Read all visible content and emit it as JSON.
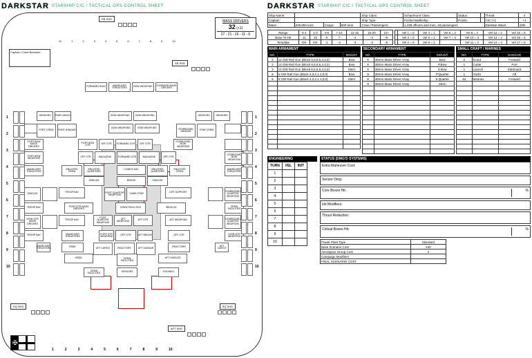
{
  "title_logo": "DARKSTAR",
  "title_sub": "STARSHIP CIC / TACTICAL OPS CONTROL SHEET",
  "ship_info": {
    "name_label": "Ship Name:",
    "name": "",
    "class_label": "Ship Class:",
    "class": "Scharnhorst Class",
    "status_label": "Status:",
    "status": "",
    "thrust_label": "Thrust:",
    "thrust": "4",
    "captain_label": "Captain:",
    "captain": "",
    "type_label": "Ship Type:",
    "type": "Pocket Battleship",
    "points_label": "Points:",
    "points": "",
    "cic_label": "CIC (+):",
    "cic": "+1",
    "mass_label": "Mass:",
    "mass": "248,894 tons",
    "cargo_label": "Cargo:",
    "cargo": "600 tons",
    "crew_label": "Crew / Passengers:",
    "crew": "1,435 officers and men, 18 passengers",
    "wave_label": "Darkstar Wave:",
    "wave": "10th"
  },
  "range_table": {
    "rows": [
      [
        "Range",
        "0-1",
        "2-3",
        "4-6",
        "7-10",
        "11-15",
        "16-20",
        "21+"
      ],
      [
        "Base To-Hit",
        "11",
        "10",
        "9",
        "7",
        "-1",
        "-4",
        "-5"
      ],
      [
        "Template",
        "OK",
        "OK",
        "-1",
        "-2",
        "-3",
        "-4",
        "-5"
      ]
    ]
  },
  "vel_table": {
    "cells": [
      [
        "",
        "Vel 1 = 0",
        "Vel 4 = 1",
        "Vel 6 = 2",
        "Vel 8 = 3",
        "Vel 12 = 4",
        "Vel 15 = 5"
      ],
      [
        "",
        "Vel 2 = 0",
        "Vel 5 = 1",
        "Vel 7 = 3",
        "Vel 10 = 3",
        "Vel 13 = 4",
        "Vel 16 = 5"
      ],
      [
        "",
        "Vel 2 = 0",
        "Vel 5 = 1",
        "",
        "Vel 11 = 3",
        "Vel 14 = 4",
        "Vel 17 = 5"
      ]
    ]
  },
  "main_arm": {
    "title": "MAIN ARMAMENT",
    "cols": [
      "NO.",
      "TYPE",
      "MOUNT"
    ],
    "rows": [
      [
        "3",
        "12 GW Rail Gun (Block 6,6,5,5,4,3,2)",
        "Bow"
      ],
      [
        "3",
        "12 GW Rail Gun (Block 6,6,5,5,4,3,2)",
        "Bow"
      ],
      [
        "3",
        "12 GW Rail Gun (Block 6,6,5,5,4,3,2)",
        "Stern"
      ],
      [
        "9",
        "6 GW Rail Gun (Block 3,3,2,1,1,0,0)",
        "Bow"
      ],
      [
        "6",
        "6 GW Rail Gun (Block 3,3,2,1,1,0,0)",
        "Stern"
      ]
    ],
    "blank_rows": 14
  },
  "sec_arm": {
    "title": "SECONDARY ARMAMENT",
    "cols": [
      "NO.",
      "TYPE",
      "MOUNT"
    ],
    "rows": [
      [
        "6",
        "35mm Mass Driver Array",
        "Bow"
      ],
      [
        "6",
        "35mm Mass Driver Array",
        "P.Bow"
      ],
      [
        "6",
        "35mm Mass Driver Array",
        "S.Bow"
      ],
      [
        "8",
        "35mm Mass Driver Array",
        "P.Quarter"
      ],
      [
        "8",
        "35mm Mass Driver Array",
        "S.Quarter"
      ],
      [
        "8",
        "35mm Mass Driver Array",
        "Stern"
      ]
    ],
    "blank_rows": 14
  },
  "craft": {
    "title": "SMALL CRAFT / MARINES",
    "cols": [
      "NO.",
      "TYPE",
      "HANGAR"
    ],
    "rows": [
      [
        "2",
        "Scout",
        "Forward"
      ],
      [
        "1",
        "Cutter",
        "Port"
      ],
      [
        "1",
        "Launch",
        "Starboard"
      ],
      [
        "1",
        "Yacht",
        "Aft"
      ],
      [
        "64",
        "Marines",
        "Forward"
      ]
    ],
    "blank_rows": 15
  },
  "mass_drivers": {
    "title": "MASS DRIVERS",
    "big": "32",
    "plus": "(+1)",
    "line": "27 - 21 - 16 - 11 - 6"
  },
  "shields": {
    "pb": "PB SHD",
    "sb": "SB SHD",
    "pq": "PQ SHD",
    "sq": "SQ SHD",
    "aft": "AFT SHD"
  },
  "crew_box": "Captain / Crew Bonuses:",
  "engineering": {
    "title": "ENGINEERING",
    "cols": [
      "TURN",
      "VEL",
      "INIT"
    ],
    "rows": [
      "1",
      "2",
      "3",
      "4",
      "5",
      "6",
      "7",
      "8",
      "9",
      "10"
    ]
  },
  "status": {
    "title": "STATUS (DMG'D SYSTEMS)",
    "extra": "Extra Maneuver Cost:",
    "sensor": "Sensor Dmg:",
    "core": "Core Boxes Hit:",
    "init": "Init Modifiers:",
    "thrust": "Thrust Reduction:",
    "crit": "Critical Boxes Hit:",
    "pct": "%"
  },
  "cost": {
    "rows": [
      [
        "Power Plant Type",
        "Standard"
      ],
      [
        "Base Scenario Cost",
        "240"
      ],
      [
        "Aerospace Group Cost",
        "2"
      ],
      [
        "Campaign Modifiers",
        ""
      ],
      [
        "FINAL SCENARIO COST",
        ""
      ]
    ]
  },
  "grid_numbers": [
    "1",
    "2",
    "3",
    "4",
    "5",
    "6",
    "7",
    "8",
    "9",
    "10"
  ],
  "ship_blocks": {
    "row_labels_left": [
      "1",
      "2",
      "3",
      "4",
      "5",
      "6",
      "7",
      "8",
      "9",
      "10"
    ],
    "compartments": [
      "FORWARD SHLD",
      "MANEUVER THRUSTERS",
      "BOW WEAPONS",
      "FORWARD MASS DRIVERS",
      "PWR CARGO",
      "SENSORS",
      "PWR CARGO",
      "BOW WEAPONS",
      "SENSORS",
      "SENSORS",
      "FORWARD HANGAR",
      "STARBOARD HANGAR",
      "STAR CREW",
      "PORT CREW",
      "PORT HANGAR",
      "BOW WEAPONS",
      "BOW WEAPONS",
      "STARBOARD MASS DRIVERS",
      "PORT BOW MASS DRIVERS",
      "PORT BOW GTR",
      "OFF GTR",
      "FORWARD GTR",
      "OFF GTR",
      "STARBOARD BOW WEAPONS",
      "PORT BOW WEAPONS",
      "OFF GTR",
      "MAGAZINE",
      "FORWARD GTR",
      "MAGAZINE",
      "OFF GTR",
      "STARBOARD BOW WEAPONS",
      "MANEUVER THRUSTERS",
      "ENLISTED CREW",
      "ENLISTED QUARTERS",
      "CONN'S NAV",
      "ENLISTED QUARTERS",
      "ENLISTED CREW",
      "MANEUVER THRUSTERS",
      "SHIELDS",
      "BRDGE",
      "SHIELDS",
      "TROOP BAY",
      "PORT QUARTER WEAPONS",
      "DARK STAR",
      "LIFE SUPPORT",
      "STARBOARD QUARTER WEAPONS",
      "TROOP BAY",
      "PORT QTR MASS DRIVERS",
      "CREW FACILITIES",
      "MEDICAL",
      "CREW FACILITIES",
      "STAR QTR MASS DRIVERS",
      "TROOP BAY",
      "PORT QUARTER WEAPONS",
      "AFT WEAPONS",
      "AFT GTR",
      "AFT WEAPONS",
      "STARBOARD QUARTER WEAPONS",
      "TROOP BAY",
      "MANEUVER THRUSTERS",
      "PORT QTR WEAPONS",
      "OFF GTR",
      "AFT BRDGE",
      "OFF GTR",
      "STAR QTR WEAPONS",
      "MANEUVER THRUSTERS",
      "BSDK",
      "AFT CARGO",
      "REACTORS",
      "AFT HANGAR",
      "REACTORS",
      "AFT CARGO",
      "BSDK",
      "CREW FACILITIES",
      "AFT SHIELDS",
      "CREW FACILITIES",
      "SENSORS",
      "ENGINES",
      "AFT MASS DRIVERS"
    ]
  },
  "colors": {
    "grid_border": "#666",
    "red": "#c00",
    "center_gray": "#ddd",
    "header_bg": "#000"
  }
}
